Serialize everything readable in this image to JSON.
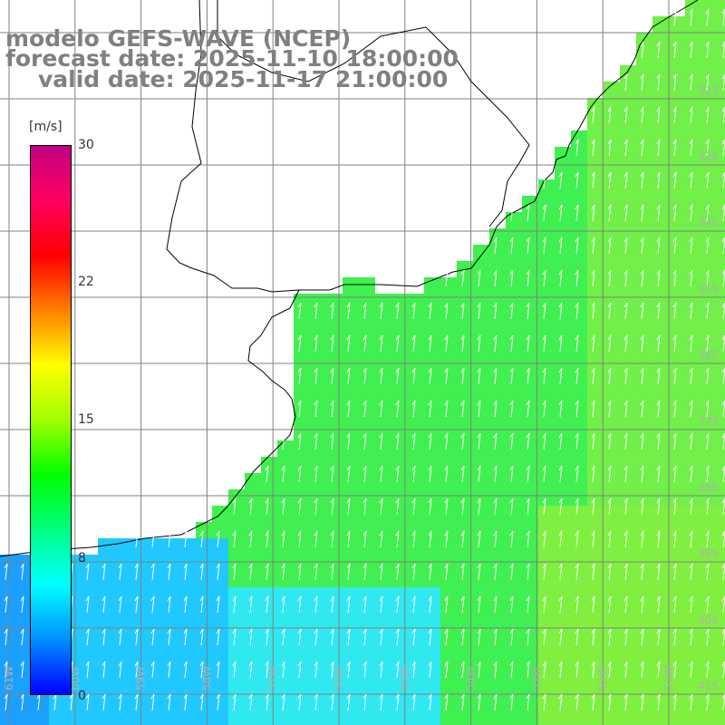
{
  "header": {
    "line1": "modelo GEFS-WAVE (NCEP)",
    "line2": "forecast date: 2025-11-10 18:00:00",
    "line3": "valid date: 2025-11-17 21:00:00"
  },
  "colorbar": {
    "unit": "[m/s]",
    "ticks": [
      {
        "label": "30",
        "value": 30
      },
      {
        "label": "22",
        "value": 22
      },
      {
        "label": "15",
        "value": 15
      },
      {
        "label": "8",
        "value": 8
      },
      {
        "label": "0",
        "value": 0
      }
    ],
    "colors": [
      "#0000ff",
      "#0090ff",
      "#00ffff",
      "#00ff80",
      "#00ff00",
      "#a0ff00",
      "#ffff00",
      "#ff8000",
      "#ff0000",
      "#ff0060",
      "#c00080"
    ]
  },
  "map": {
    "lon_labels": [
      "61W",
      "60W",
      "59W",
      "58W",
      "57W",
      "56W",
      "55W",
      "54W",
      "53W",
      "52W",
      "51W"
    ],
    "lat_labels": [
      "32S",
      "33S",
      "34S",
      "35S",
      "36S",
      "37S",
      "38S",
      "39S",
      "40S",
      "41S"
    ],
    "land_color": "#ffffff",
    "grid_color": "#808080",
    "arrow_color": "#ffffff"
  }
}
